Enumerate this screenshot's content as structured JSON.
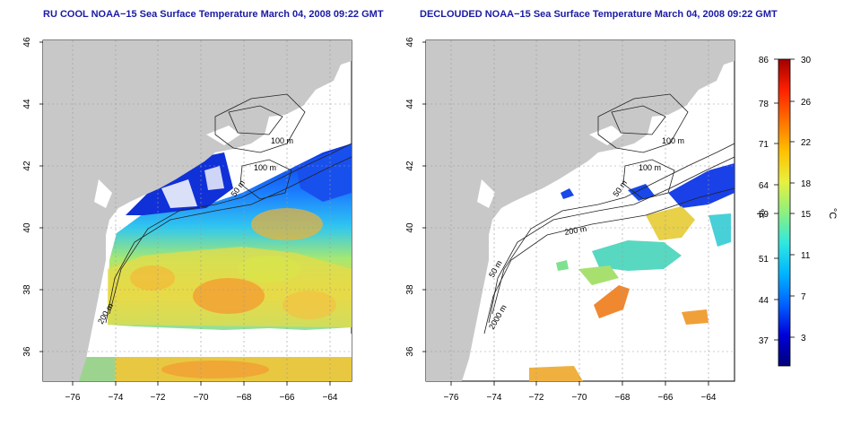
{
  "titles": {
    "left": "RU COOL NOAA−15 Sea Surface Temperature March 04, 2008 09:22 GMT",
    "right": "DECLOUDED NOAA−15 Sea Surface Temperature March 04, 2008 09:22 GMT"
  },
  "axes": {
    "lat_labels": [
      "46",
      "44",
      "42",
      "40",
      "38",
      "36"
    ],
    "lon_labels": [
      "−76",
      "−74",
      "−72",
      "−70",
      "−68",
      "−66",
      "−64"
    ]
  },
  "contour_labels": {
    "left": [
      "100 m",
      "100 m",
      "50 m",
      "200 m"
    ],
    "right": [
      "100 m",
      "100 m",
      "50 m",
      "200 m",
      "50 m",
      "2000 m"
    ]
  },
  "colorbar": {
    "f_ticks": [
      "86",
      "78",
      "71",
      "64",
      "59",
      "51",
      "44",
      "37"
    ],
    "c_ticks": [
      "30",
      "26",
      "22",
      "18",
      "15",
      "11",
      "7",
      "3"
    ],
    "f_unit": "°F",
    "c_unit": "°C"
  },
  "colors": {
    "land": "#c8c8c8",
    "contour": "#222222",
    "grid": "#9a9a9a",
    "title": "#1a1aa6",
    "colormap": [
      "#00007a",
      "#0000d8",
      "#0060ff",
      "#00b4ff",
      "#30e8e0",
      "#8cf080",
      "#e8f040",
      "#ffc000",
      "#ff7000",
      "#ff2000",
      "#a00000"
    ]
  }
}
